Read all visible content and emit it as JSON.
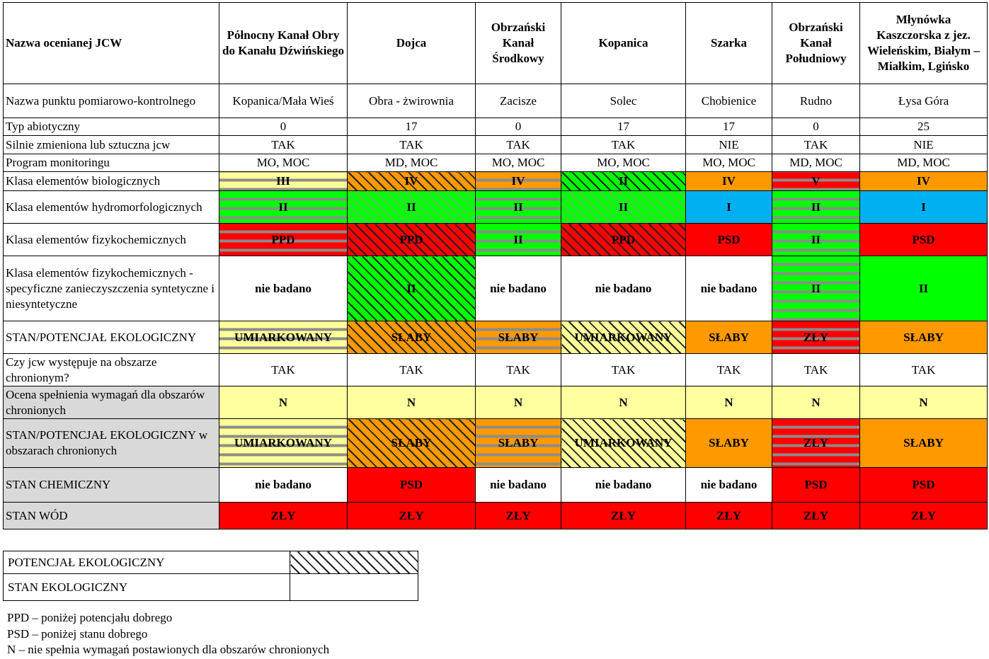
{
  "columns": [
    "Nazwa ocenianej JCW",
    "Północny Kanał Obry do Kanału Dźwińskiego",
    "Dojca",
    "Obrzański Kanał Środkowy",
    "Kopanica",
    "Szarka",
    "Obrzański Kanał Południowy",
    "Młynówka Kaszczorska z jez. Wieleńskim, Białym – Miałkim, Lgińsko"
  ],
  "rows": [
    {
      "label": "Nazwa punktu pomiarowo-kontrolnego",
      "cells": [
        "Kopanica/Mała Wieś",
        "Obra - żwirownia",
        "Zacisze",
        "Solec",
        "Chobienice",
        "Rudno",
        "Łysa Góra"
      ]
    },
    {
      "label": "Typ abiotyczny",
      "cells": [
        "0",
        "17",
        "0",
        "17",
        "17",
        "0",
        "25"
      ]
    },
    {
      "label": "Silnie zmieniona lub sztuczna jcw",
      "cells": [
        "TAK",
        "TAK",
        "TAK",
        "TAK",
        "NIE",
        "TAK",
        "NIE"
      ]
    },
    {
      "label": "Program monitoringu",
      "cells": [
        "MO, MOC",
        "MD, MOC",
        "MO, MOC",
        "MO, MOC",
        "MO, MOC",
        "MD, MOC",
        "MD, MOC"
      ]
    },
    {
      "label": "Klasa elementów biologicznych",
      "cells": [
        "III",
        "IV",
        "IV",
        "II",
        "IV",
        "V",
        "IV"
      ]
    },
    {
      "label": "Klasa elementów hydromorfologicznych",
      "cells": [
        "II",
        "II",
        "II",
        "II",
        "I",
        "II",
        "I"
      ]
    },
    {
      "label": "Klasa elementów fizykochemicznych",
      "cells": [
        "PPD",
        "PPD",
        "II",
        "PPD",
        "PSD",
        "II",
        "PSD"
      ]
    },
    {
      "label": "Klasa elementów fizykochemicznych - specyficzne zanieczyszczenia syntetyczne i niesyntetyczne",
      "cells": [
        "nie badano",
        "II",
        "nie badano",
        "nie badano",
        "nie badano",
        "II",
        "II"
      ]
    },
    {
      "label": "STAN/POTENCJAŁ EKOLOGICZNY",
      "cells": [
        "UMIARKOWANY",
        "SŁABY",
        "SŁABY",
        "UMIARKOWANY",
        "SŁABY",
        "ZŁY",
        "SŁABY"
      ]
    },
    {
      "label": "Czy jcw występuje na obszarze chronionym?",
      "cells": [
        "TAK",
        "TAK",
        "TAK",
        "TAK",
        "TAK",
        "TAK",
        "TAK"
      ]
    },
    {
      "label": "Ocena spełnienia wymagań dla obszarów chronionych",
      "cells": [
        "N",
        "N",
        "N",
        "N",
        "N",
        "N",
        "N"
      ]
    },
    {
      "label": "STAN/POTENCJAŁ EKOLOGICZNY w obszarach chronionych",
      "cells": [
        "UMIARKOWANY",
        "SŁABY",
        "SŁABY",
        "UMIARKOWANY",
        "SŁABY",
        "ZŁY",
        "SŁABY"
      ]
    },
    {
      "label": "STAN CHEMICZNY",
      "cells": [
        "nie badano",
        "PSD",
        "nie badano",
        "nie badano",
        "nie badano",
        "PSD",
        "PSD"
      ]
    },
    {
      "label": "STAN WÓD",
      "cells": [
        "ZŁY",
        "ZŁY",
        "ZŁY",
        "ZŁY",
        "ZŁY",
        "ZŁY",
        "ZŁY"
      ]
    }
  ],
  "legend": {
    "potencjal": "POTENCJAŁ EKOLOGICZNY",
    "stan": "STAN EKOLOGICZNY"
  },
  "notes": [
    "PPD – poniżej potencjału dobrego",
    "PSD – poniżej stanu dobrego",
    "N – nie spełnia wymagań postawionych dla obszarów chronionych"
  ],
  "colors": {
    "yellow": "#ffff99",
    "green": "#00ff00",
    "orange": "#ff9900",
    "red": "#ff0000",
    "blue": "#00b0f0",
    "gray": "#d9d9d9"
  }
}
